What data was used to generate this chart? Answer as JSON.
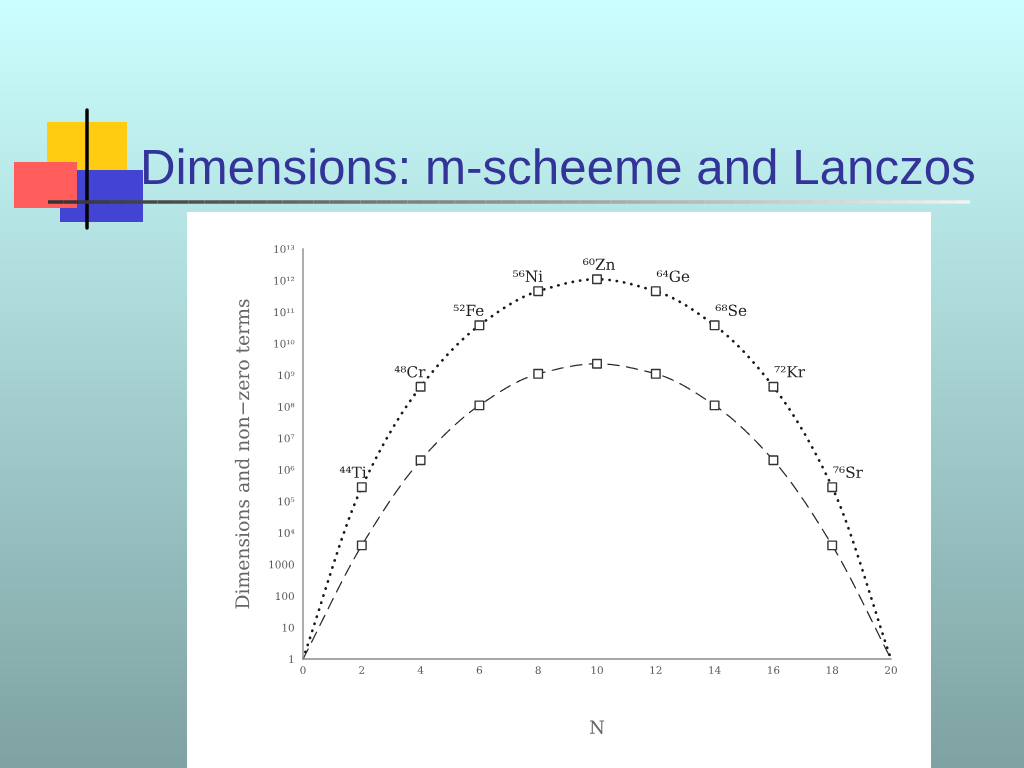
{
  "chart_data": {
    "type": "line",
    "title": "Dimensions: m-scheeme and Lanczos",
    "xlabel": "N",
    "ylabel": "Dimensions and non−zero terms",
    "log": "y",
    "xlim": [
      0,
      20
    ],
    "xticks": [
      0,
      2,
      4,
      6,
      8,
      10,
      12,
      14,
      16,
      18,
      20
    ],
    "ylim": [
      1,
      10000000000000
    ],
    "yticks": [
      1,
      10,
      100,
      1000,
      {
        "value": 10000,
        "label": "10⁴"
      },
      {
        "value": 100000,
        "label": "10⁵"
      },
      {
        "value": 1000000,
        "label": "10⁶"
      },
      {
        "value": 10000000,
        "label": "10⁷"
      },
      {
        "value": 100000000,
        "label": "10⁸"
      },
      {
        "value": 1000000000,
        "label": "10⁹"
      },
      {
        "value": 10000000000,
        "label": "10¹⁰"
      },
      {
        "value": 100000000000,
        "label": "10¹¹"
      },
      {
        "value": 1000000000000,
        "label": "10¹²"
      },
      {
        "value": 10000000000000,
        "label": "10¹³"
      }
    ],
    "series": [
      {
        "color": "#1a1a1a",
        "line_style": "dotted",
        "marker": "none",
        "x": [
          0,
          2,
          4,
          6,
          8,
          10,
          12,
          14,
          16,
          18,
          20
        ],
        "values": [
          1,
          280000,
          430000000,
          38000000000.0,
          460000000000.0,
          1100000000000.0,
          460000000000.0,
          38000000000.0,
          430000000,
          280000,
          1
        ]
      },
      {
        "color": "#2a2a2a",
        "line_style": "dashed",
        "marker": "none",
        "x": [
          0,
          2,
          4,
          6,
          8,
          10,
          12,
          14,
          16,
          18,
          20
        ],
        "values": [
          1,
          4000,
          2000000,
          110000000,
          1100000000,
          2300000000,
          1100000000,
          110000000,
          2000000,
          4000,
          1
        ]
      },
      {
        "type": "scatter",
        "color": "#333333",
        "marker": "square",
        "x": [
          2,
          4,
          6,
          8,
          10,
          12,
          14,
          16,
          18
        ],
        "values": [
          280000,
          430000000,
          38000000000.0,
          460000000000.0,
          1100000000000.0,
          460000000000.0,
          38000000000.0,
          430000000,
          280000
        ]
      },
      {
        "type": "scatter",
        "color": "#333333",
        "marker": "square",
        "x": [
          2,
          4,
          6,
          8,
          10,
          12,
          14,
          16,
          18
        ],
        "values": [
          4000,
          2000000,
          110000000,
          1100000000,
          2300000000,
          1100000000,
          110000000,
          2000000,
          4000
        ]
      }
    ],
    "annotations": [
      {
        "text": "⁴⁴Ti",
        "x": 2,
        "y": 280000
      },
      {
        "text": "⁴⁸Cr",
        "x": 4,
        "y": 430000000
      },
      {
        "text": "⁵²Fe",
        "x": 6,
        "y": 38000000000.0
      },
      {
        "text": "⁵⁶Ni",
        "x": 8,
        "y": 460000000000.0
      },
      {
        "text": "⁶⁰Zn",
        "x": 10,
        "y": 1100000000000.0
      },
      {
        "text": "⁶⁴Ge",
        "x": 12,
        "y": 460000000000.0
      },
      {
        "text": "⁶⁸Se",
        "x": 14,
        "y": 38000000000.0
      },
      {
        "text": "⁷²Kr",
        "x": 16,
        "y": 430000000
      },
      {
        "text": "⁷⁶Sr",
        "x": 18,
        "y": 280000
      }
    ]
  }
}
